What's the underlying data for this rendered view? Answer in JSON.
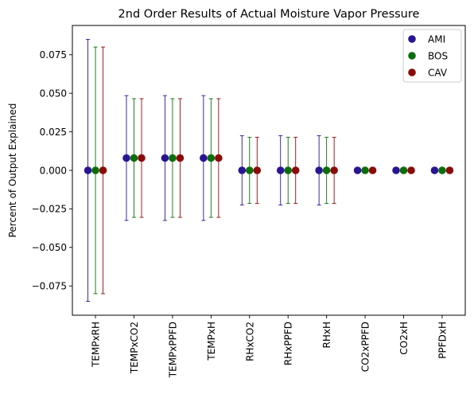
{
  "chart_data": {
    "type": "scatter",
    "title": "2nd Order Results of Actual Moisture Vapor Pressure",
    "xlabel": "",
    "ylabel": "Percent of Output Explained",
    "categories": [
      "TEMPxRH",
      "TEMPxCO2",
      "TEMPxPPFD",
      "TEMPxH",
      "RHxCO2",
      "RHxPPFD",
      "RHxH",
      "CO2xPPFD",
      "CO2xH",
      "PPFDxH"
    ],
    "ylim": [
      -0.094,
      0.094
    ],
    "yticks": [
      -0.075,
      -0.05,
      -0.025,
      0.0,
      0.025,
      0.05,
      0.075
    ],
    "ytick_labels": [
      "−0.075",
      "−0.050",
      "−0.025",
      "0.000",
      "0.025",
      "0.050",
      "0.075"
    ],
    "grid": false,
    "legend_position": "top-right",
    "series": [
      {
        "name": "AMI",
        "color": "#2a1493",
        "values": [
          0.0,
          0.008,
          0.008,
          0.008,
          0.0,
          0.0,
          0.0,
          0.0,
          0.0,
          0.0
        ],
        "errors": [
          0.085,
          0.0405,
          0.0405,
          0.0405,
          0.0225,
          0.0225,
          0.0225,
          0.0,
          0.0,
          0.0
        ]
      },
      {
        "name": "BOS",
        "color": "#0b6e0b",
        "values": [
          0.0,
          0.008,
          0.008,
          0.008,
          0.0,
          0.0,
          0.0,
          0.0,
          0.0,
          0.0
        ],
        "errors": [
          0.08,
          0.0385,
          0.0385,
          0.0385,
          0.0215,
          0.0215,
          0.0215,
          0.0,
          0.0,
          0.0
        ]
      },
      {
        "name": "CAV",
        "color": "#8b0a0a",
        "values": [
          0.0,
          0.008,
          0.008,
          0.008,
          0.0,
          0.0,
          0.0,
          0.0,
          0.0,
          0.0
        ],
        "errors": [
          0.08,
          0.0385,
          0.0385,
          0.0385,
          0.0215,
          0.0215,
          0.0215,
          0.0,
          0.0,
          0.0
        ]
      }
    ]
  }
}
